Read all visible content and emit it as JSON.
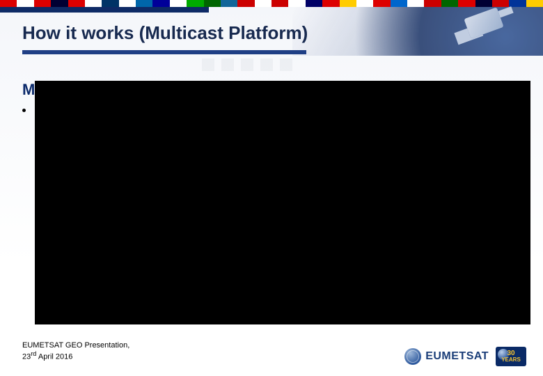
{
  "colors": {
    "title": "#17294f",
    "underline": "#1f3f85",
    "blue_bar": "#0e2a66",
    "body_heading": "#0b2a6b",
    "logo_text": "#1a3d78",
    "badge_bg": "#0a2a66",
    "badge_text": "#f4c230"
  },
  "flags": [
    "#d00",
    "#fff",
    "#d00",
    "#003",
    "#d00",
    "#fff",
    "#036",
    "#fff",
    "#06a",
    "#009",
    "#fff",
    "#0a0",
    "#060",
    "#169",
    "#c00",
    "#fff",
    "#c00",
    "#fff",
    "#006",
    "#d00",
    "#fc0",
    "#fff",
    "#d00",
    "#06c",
    "#fff",
    "#c00",
    "#060",
    "#d00",
    "#003",
    "#c00",
    "#039",
    "#fc0"
  ],
  "title": "How it works (Multicast Platform)",
  "body": {
    "heading_initial": "M",
    "bullet_marker": "•"
  },
  "footer": {
    "line1": "EUMETSAT GEO Presentation,",
    "line2_pre": "23",
    "line2_sup": "rd",
    "line2_post": " April 2016"
  },
  "logos": {
    "eumetsat_text": "EUMETSAT",
    "badge_line1": "30",
    "badge_line2": "YEARS"
  }
}
